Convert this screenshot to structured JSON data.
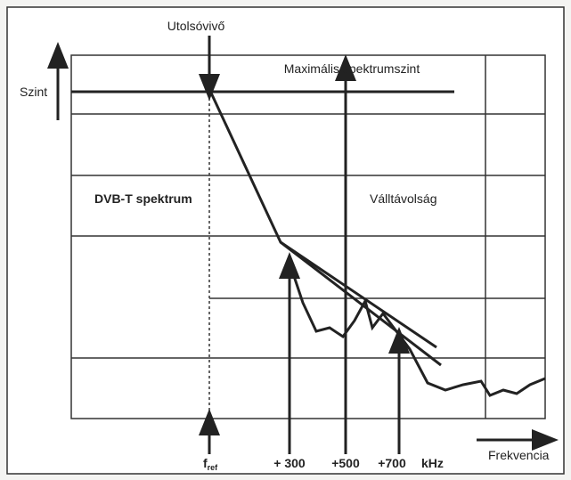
{
  "labels": {
    "carrier": "Utolsóvivő",
    "level": "Szint",
    "max_level": "Maximális spektrumszint",
    "spectrum": "DVB-T spektrum",
    "shoulder": "Válltávolság",
    "fref": {
      "main": "f",
      "sub": "ref"
    },
    "offsets": [
      "+ 300",
      "+500",
      "+700"
    ],
    "unit": "kHz",
    "frequency": "Frekvencia"
  }
}
